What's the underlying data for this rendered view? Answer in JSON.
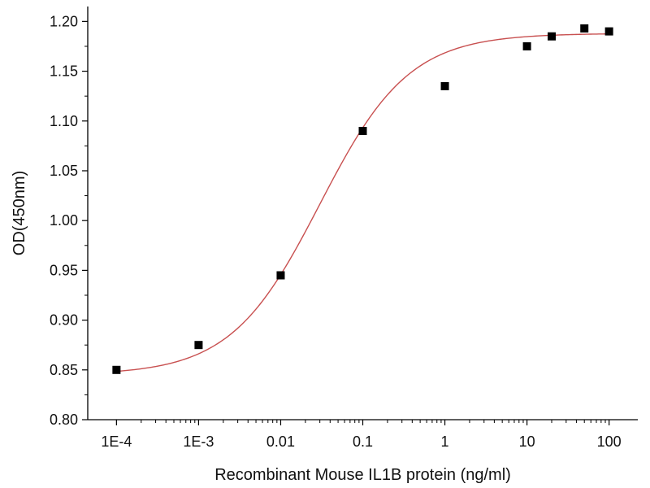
{
  "chart_data": {
    "type": "scatter",
    "title": "",
    "xlabel": "Recombinant Mouse IL1B protein (ng/ml)",
    "ylabel": "OD(450nm)",
    "x_scale": "log",
    "xlim": [
      0.0001,
      100
    ],
    "ylim": [
      0.8,
      1.2
    ],
    "x_ticks": [
      {
        "value": 0.0001,
        "label": "1E-4"
      },
      {
        "value": 0.001,
        "label": "1E-3"
      },
      {
        "value": 0.01,
        "label": "0.01"
      },
      {
        "value": 0.1,
        "label": "0.1"
      },
      {
        "value": 1,
        "label": "1"
      },
      {
        "value": 10,
        "label": "10"
      },
      {
        "value": 100,
        "label": "100"
      }
    ],
    "y_ticks": [
      {
        "value": 0.8,
        "label": "0.80"
      },
      {
        "value": 0.85,
        "label": "0.85"
      },
      {
        "value": 0.9,
        "label": "0.90"
      },
      {
        "value": 0.95,
        "label": "0.95"
      },
      {
        "value": 1.0,
        "label": "1.00"
      },
      {
        "value": 1.05,
        "label": "1.05"
      },
      {
        "value": 1.1,
        "label": "1.10"
      },
      {
        "value": 1.15,
        "label": "1.15"
      },
      {
        "value": 1.2,
        "label": "1.20"
      }
    ],
    "grid": false,
    "series": [
      {
        "marker": "square",
        "color": "#000000",
        "x": [
          0.0001,
          0.001,
          0.01,
          0.1,
          1,
          10,
          20,
          50,
          100
        ],
        "y": [
          0.85,
          0.875,
          0.945,
          1.09,
          1.135,
          1.175,
          1.185,
          1.193,
          1.19
        ]
      }
    ],
    "fit": {
      "model": "4PL",
      "color": "#c85050",
      "bottom": 0.845,
      "top": 1.188,
      "ec50": 0.03,
      "hill": 0.8
    }
  }
}
